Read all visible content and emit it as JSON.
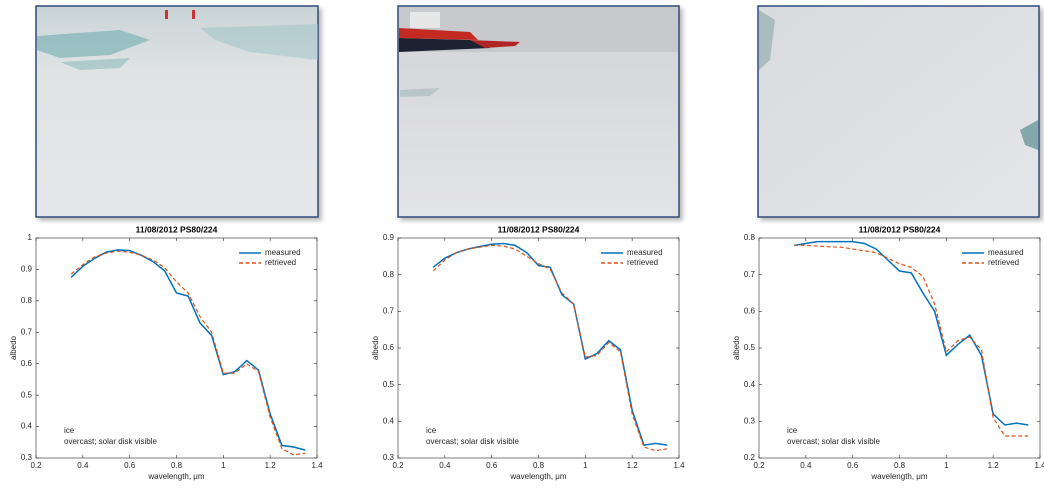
{
  "chart_data": [
    {
      "type": "line",
      "title": "11/08/2012 PS80/224",
      "xlabel": "wavelength, μm",
      "ylabel": "albedo",
      "annotations": [
        "ice",
        "overcast; solar disk visible"
      ],
      "legend": "upper right",
      "xlim": [
        0.2,
        1.4
      ],
      "xticks": [
        0.2,
        0.4,
        0.6,
        0.8,
        1,
        1.2,
        1.4
      ],
      "ylim": [
        0.3,
        1
      ],
      "yticks": [
        0.3,
        0.4,
        0.5,
        0.6,
        0.7,
        0.8,
        0.9,
        1
      ],
      "x": [
        0.35,
        0.4,
        0.45,
        0.5,
        0.55,
        0.6,
        0.65,
        0.7,
        0.75,
        0.8,
        0.85,
        0.9,
        0.95,
        1,
        1.05,
        1.1,
        1.15,
        1.2,
        1.25,
        1.3,
        1.35
      ],
      "series": [
        {
          "name": "measured",
          "color": "#0072bd",
          "linestyle": "solid",
          "values": [
            0.875,
            0.91,
            0.935,
            0.955,
            0.962,
            0.96,
            0.945,
            0.925,
            0.895,
            0.825,
            0.815,
            0.73,
            0.69,
            0.565,
            0.575,
            0.61,
            0.58,
            0.44,
            0.34,
            0.335,
            0.325
          ]
        },
        {
          "name": "retrieved",
          "color": "#d95319",
          "linestyle": "dashed",
          "values": [
            0.885,
            0.915,
            0.94,
            0.952,
            0.958,
            0.955,
            0.945,
            0.93,
            0.905,
            0.86,
            0.825,
            0.75,
            0.7,
            0.57,
            0.57,
            0.6,
            0.575,
            0.43,
            0.33,
            0.31,
            0.315
          ]
        }
      ]
    },
    {
      "type": "line",
      "title": "11/08/2012 PS80/224",
      "xlabel": "wavelength, μm",
      "ylabel": "albedo",
      "annotations": [
        "ice",
        "overcast; solar disk visible"
      ],
      "legend": "upper right",
      "xlim": [
        0.2,
        1.4
      ],
      "xticks": [
        0.2,
        0.4,
        0.6,
        0.8,
        1,
        1.2,
        1.4
      ],
      "ylim": [
        0.3,
        0.9
      ],
      "yticks": [
        0.3,
        0.4,
        0.5,
        0.6,
        0.7,
        0.8,
        0.9
      ],
      "x": [
        0.35,
        0.4,
        0.45,
        0.5,
        0.55,
        0.6,
        0.65,
        0.7,
        0.75,
        0.8,
        0.85,
        0.9,
        0.95,
        1,
        1.05,
        1.1,
        1.15,
        1.2,
        1.25,
        1.3,
        1.35
      ],
      "series": [
        {
          "name": "measured",
          "color": "#0072bd",
          "linestyle": "solid",
          "values": [
            0.82,
            0.845,
            0.86,
            0.87,
            0.877,
            0.883,
            0.885,
            0.88,
            0.86,
            0.825,
            0.82,
            0.745,
            0.72,
            0.57,
            0.585,
            0.62,
            0.595,
            0.43,
            0.335,
            0.34,
            0.335
          ]
        },
        {
          "name": "retrieved",
          "color": "#d95319",
          "linestyle": "dashed",
          "values": [
            0.81,
            0.84,
            0.86,
            0.87,
            0.875,
            0.88,
            0.878,
            0.87,
            0.85,
            0.83,
            0.815,
            0.75,
            0.72,
            0.575,
            0.58,
            0.615,
            0.59,
            0.42,
            0.33,
            0.32,
            0.325
          ]
        }
      ]
    },
    {
      "type": "line",
      "title": "11/08/2012 PS80/224",
      "xlabel": "wavelength, μm",
      "ylabel": "albedo",
      "annotations": [
        "ice",
        "overcast; solar disk visible"
      ],
      "legend": "upper right",
      "xlim": [
        0.2,
        1.4
      ],
      "xticks": [
        0.2,
        0.4,
        0.6,
        0.8,
        1,
        1.2,
        1.4
      ],
      "ylim": [
        0.2,
        0.8
      ],
      "yticks": [
        0.2,
        0.3,
        0.4,
        0.5,
        0.6,
        0.7,
        0.8
      ],
      "x": [
        0.35,
        0.4,
        0.45,
        0.5,
        0.55,
        0.6,
        0.65,
        0.7,
        0.75,
        0.8,
        0.85,
        0.9,
        0.95,
        1,
        1.05,
        1.1,
        1.15,
        1.2,
        1.25,
        1.3,
        1.35
      ],
      "series": [
        {
          "name": "measured",
          "color": "#0072bd",
          "linestyle": "solid",
          "values": [
            0.78,
            0.785,
            0.79,
            0.79,
            0.79,
            0.79,
            0.785,
            0.77,
            0.74,
            0.71,
            0.705,
            0.65,
            0.6,
            0.48,
            0.51,
            0.535,
            0.48,
            0.32,
            0.29,
            0.295,
            0.29
          ]
        },
        {
          "name": "retrieved",
          "color": "#d95319",
          "linestyle": "dashed",
          "values": [
            0.78,
            0.78,
            0.778,
            0.776,
            0.775,
            0.77,
            0.765,
            0.76,
            0.745,
            0.73,
            0.72,
            0.695,
            0.62,
            0.49,
            0.52,
            0.53,
            0.495,
            0.31,
            0.26,
            0.26,
            0.26
          ]
        }
      ]
    }
  ]
}
